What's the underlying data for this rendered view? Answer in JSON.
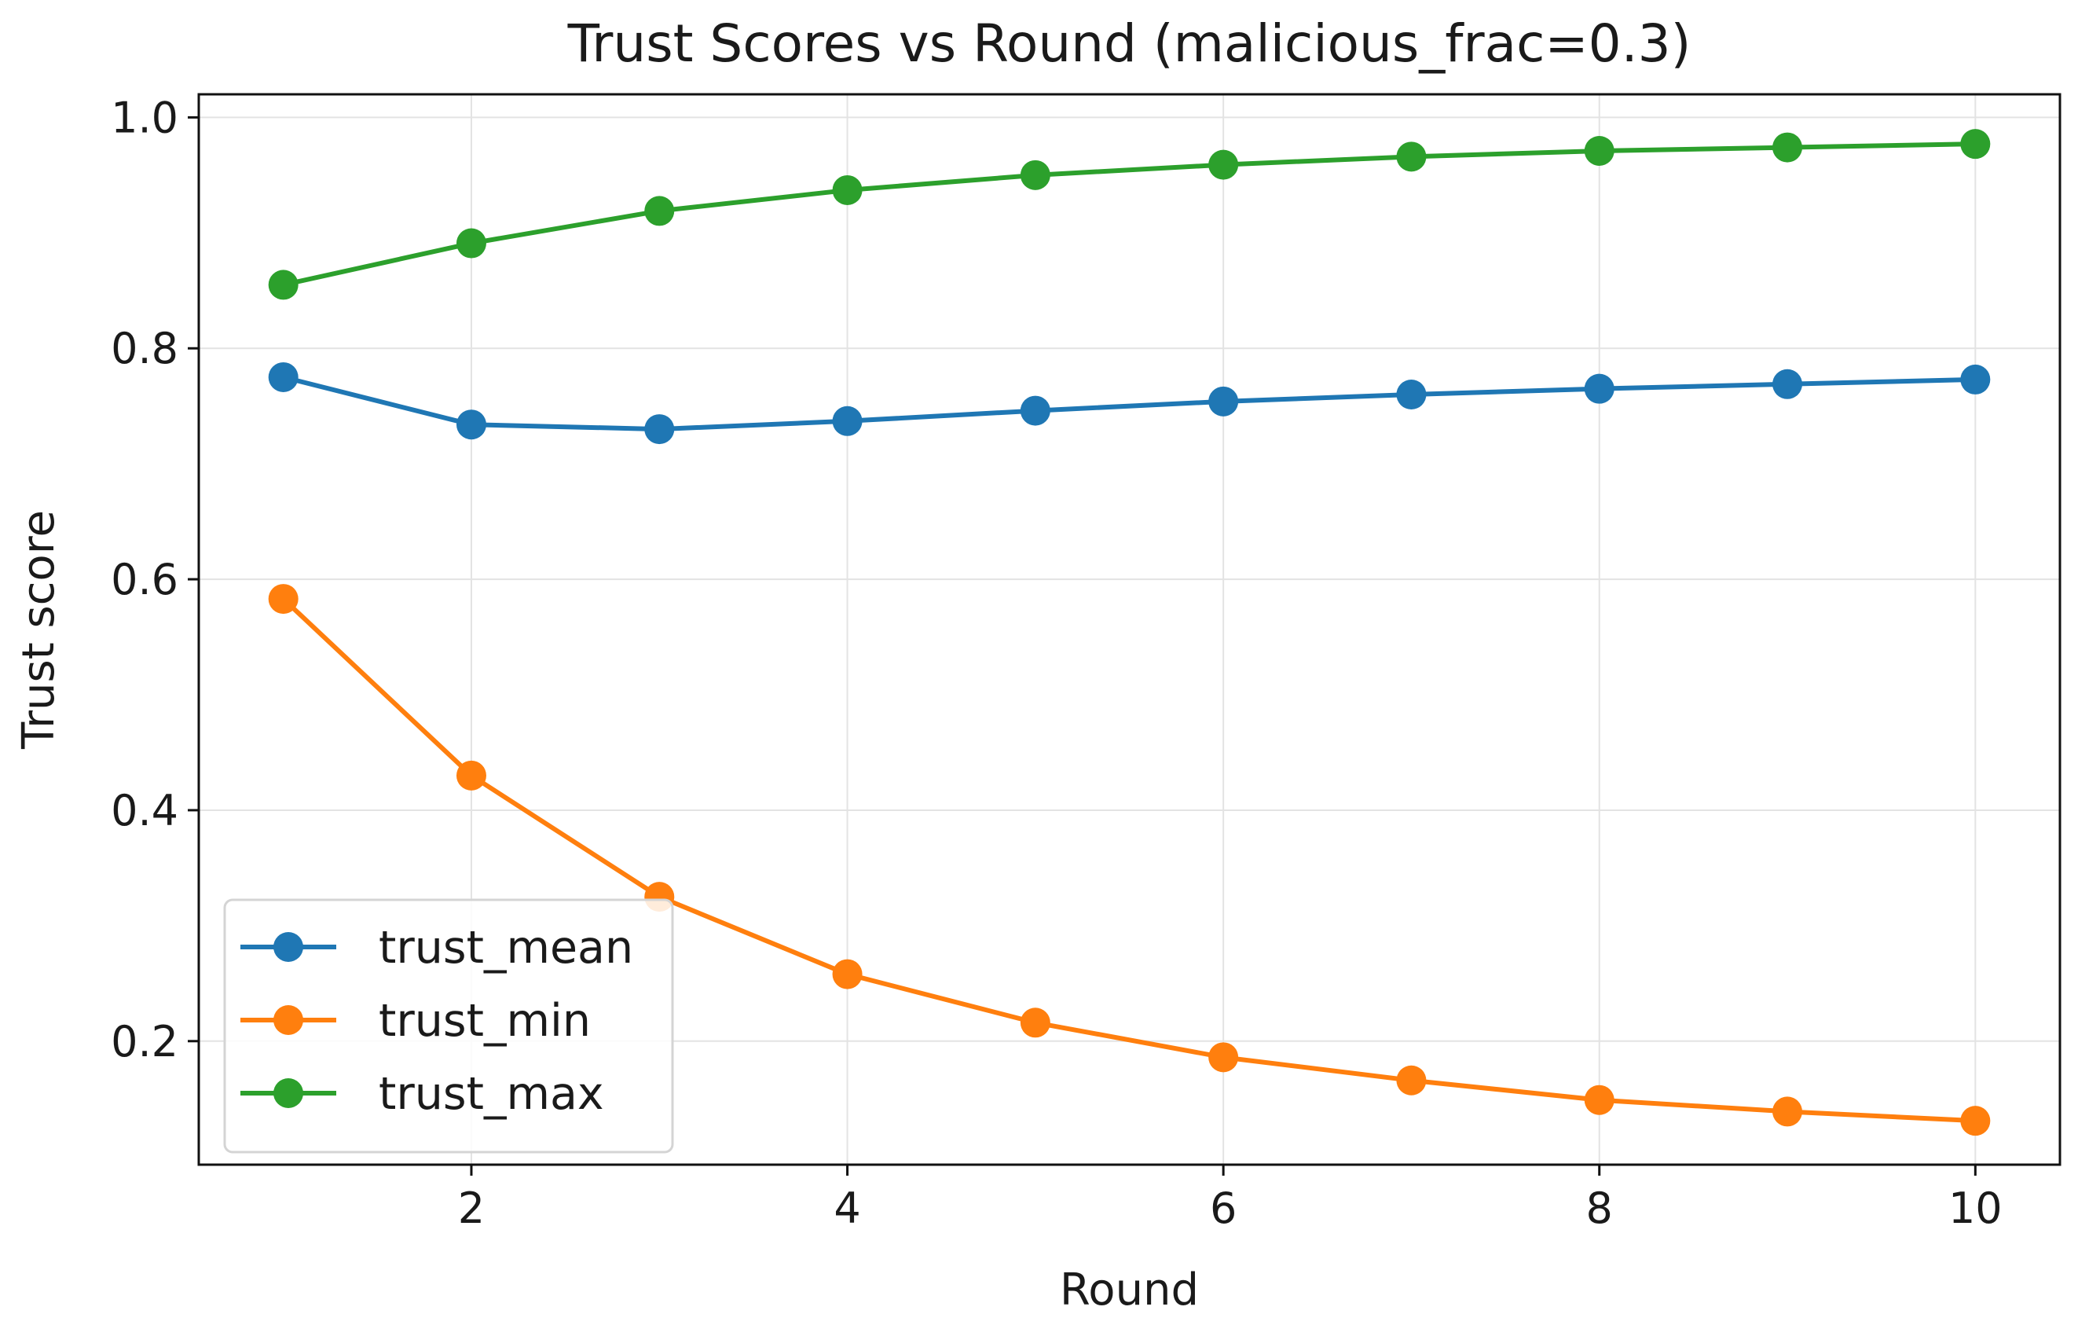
{
  "chart_data": {
    "type": "line",
    "title": "Trust Scores vs Round (malicious_frac=0.3)",
    "xlabel": "Round",
    "ylabel": "Trust score",
    "x": [
      1,
      2,
      3,
      4,
      5,
      6,
      7,
      8,
      9,
      10
    ],
    "xlim": [
      0.55,
      10.45
    ],
    "ylim": [
      0.093,
      1.02
    ],
    "xticks": [
      2,
      4,
      6,
      8,
      10
    ],
    "xtick_labels": [
      "2",
      "4",
      "6",
      "8",
      "10"
    ],
    "yticks": [
      0.2,
      0.4,
      0.6,
      0.8,
      1.0
    ],
    "ytick_labels": [
      "0.2",
      "0.4",
      "0.6",
      "0.8",
      "1.0"
    ],
    "grid": true,
    "legend_position": "lower-left",
    "series": [
      {
        "name": "trust_mean",
        "color": "#1f77b4",
        "values": [
          0.775,
          0.734,
          0.73,
          0.737,
          0.746,
          0.754,
          0.76,
          0.765,
          0.769,
          0.773
        ]
      },
      {
        "name": "trust_min",
        "color": "#ff7f0e",
        "values": [
          0.583,
          0.43,
          0.325,
          0.258,
          0.216,
          0.186,
          0.166,
          0.149,
          0.139,
          0.131
        ]
      },
      {
        "name": "trust_max",
        "color": "#2ca02c",
        "values": [
          0.855,
          0.891,
          0.919,
          0.937,
          0.95,
          0.959,
          0.966,
          0.971,
          0.974,
          0.977
        ]
      }
    ]
  }
}
